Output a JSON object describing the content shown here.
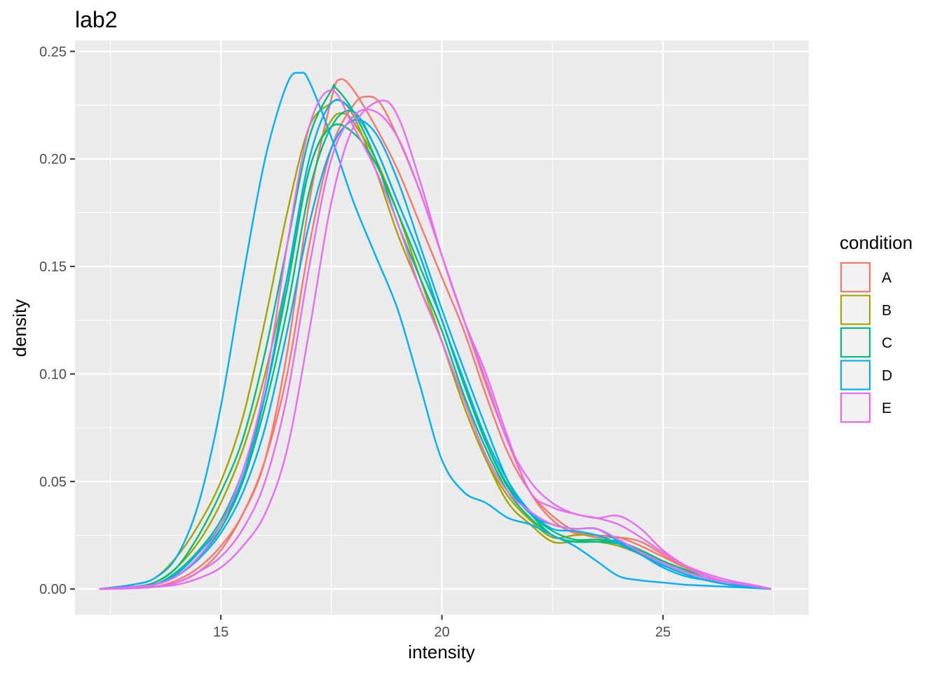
{
  "chart_data": {
    "type": "line",
    "title": "lab2",
    "xlabel": "intensity",
    "ylabel": "density",
    "xlim": [
      11.7,
      28.3
    ],
    "ylim": [
      -0.012,
      0.255
    ],
    "xticks": [
      15,
      20,
      25
    ],
    "yticks": [
      0.0,
      0.05,
      0.1,
      0.15,
      0.2,
      0.25
    ],
    "xtick_labels": [
      "15",
      "20",
      "25"
    ],
    "ytick_labels": [
      "0.00",
      "0.05",
      "0.10",
      "0.15",
      "0.20",
      "0.25"
    ],
    "grid": true,
    "legend": {
      "title": "condition",
      "position": "right",
      "entries": [
        {
          "label": "A",
          "color": "#F8766D"
        },
        {
          "label": "B",
          "color": "#A3A500"
        },
        {
          "label": "C",
          "color": "#00BF7D"
        },
        {
          "label": "D",
          "color": "#00B0F6"
        },
        {
          "label": "E",
          "color": "#E76BF3"
        }
      ]
    },
    "series": [
      {
        "condition": "A",
        "color": "#F8766D",
        "x": [
          12.25,
          13,
          13.5,
          14,
          14.5,
          15,
          15.5,
          16,
          16.5,
          17,
          17.5,
          17.7,
          18,
          18.5,
          19,
          19.5,
          20,
          20.5,
          21,
          21.5,
          22,
          22.5,
          23,
          23.5,
          24,
          24.5,
          25,
          25.5,
          26,
          26.5,
          27,
          27.45
        ],
        "y": [
          0,
          0.0005,
          0.001,
          0.004,
          0.01,
          0.02,
          0.035,
          0.06,
          0.11,
          0.18,
          0.228,
          0.237,
          0.232,
          0.215,
          0.195,
          0.17,
          0.145,
          0.12,
          0.09,
          0.063,
          0.045,
          0.034,
          0.027,
          0.024,
          0.024,
          0.022,
          0.016,
          0.01,
          0.006,
          0.003,
          0.0015,
          0
        ]
      },
      {
        "condition": "A",
        "color": "#F8766D",
        "x": [
          12.25,
          13,
          13.5,
          14,
          14.5,
          15,
          15.5,
          16,
          16.5,
          17,
          17.5,
          18,
          18.3,
          18.6,
          19,
          19.5,
          20,
          20.5,
          21,
          21.5,
          22,
          22.5,
          23,
          23.5,
          24,
          24.5,
          25,
          25.5,
          26,
          26.5,
          27,
          27.45
        ],
        "y": [
          0,
          0.0005,
          0.001,
          0.003,
          0.008,
          0.018,
          0.035,
          0.06,
          0.1,
          0.16,
          0.205,
          0.225,
          0.229,
          0.226,
          0.21,
          0.185,
          0.155,
          0.125,
          0.095,
          0.068,
          0.045,
          0.032,
          0.026,
          0.025,
          0.024,
          0.02,
          0.015,
          0.01,
          0.006,
          0.003,
          0.0015,
          0
        ]
      },
      {
        "condition": "B",
        "color": "#A3A500",
        "x": [
          12.25,
          13,
          13.5,
          14,
          14.5,
          15,
          15.5,
          16,
          16.5,
          17,
          17.5,
          17.7,
          18,
          18.5,
          19,
          19.5,
          20,
          20.5,
          21,
          21.5,
          22,
          22.5,
          23,
          23.5,
          24,
          24.5,
          25,
          25.5,
          26,
          26.5,
          27,
          27.45
        ],
        "y": [
          0,
          0.002,
          0.005,
          0.015,
          0.03,
          0.05,
          0.08,
          0.125,
          0.175,
          0.215,
          0.226,
          0.227,
          0.22,
          0.195,
          0.165,
          0.14,
          0.115,
          0.085,
          0.06,
          0.04,
          0.03,
          0.022,
          0.022,
          0.022,
          0.02,
          0.016,
          0.011,
          0.007,
          0.004,
          0.002,
          0.001,
          0
        ]
      },
      {
        "condition": "B",
        "color": "#A3A500",
        "x": [
          12.25,
          13,
          13.5,
          14,
          14.5,
          15,
          15.5,
          16,
          16.5,
          17,
          17.5,
          17.8,
          18,
          18.5,
          19,
          19.5,
          20,
          20.5,
          21,
          21.5,
          22,
          22.5,
          23,
          23.5,
          24,
          24.5,
          25,
          25.5,
          26,
          26.5,
          27,
          27.45
        ],
        "y": [
          0,
          0.001,
          0.003,
          0.01,
          0.022,
          0.04,
          0.065,
          0.1,
          0.145,
          0.195,
          0.218,
          0.221,
          0.217,
          0.2,
          0.175,
          0.145,
          0.115,
          0.085,
          0.06,
          0.043,
          0.032,
          0.024,
          0.025,
          0.025,
          0.021,
          0.016,
          0.011,
          0.007,
          0.004,
          0.002,
          0.001,
          0
        ]
      },
      {
        "condition": "C",
        "color": "#00BF7D",
        "x": [
          12.25,
          13,
          13.5,
          14,
          14.5,
          15,
          15.5,
          16,
          16.5,
          17,
          17.5,
          17.6,
          18,
          18.5,
          19,
          19.5,
          20,
          20.5,
          21,
          21.5,
          22,
          22.5,
          23,
          23.5,
          24,
          24.5,
          25,
          25.5,
          26,
          26.5,
          27,
          27.45
        ],
        "y": [
          0,
          0.001,
          0.003,
          0.01,
          0.025,
          0.045,
          0.07,
          0.11,
          0.16,
          0.21,
          0.232,
          0.233,
          0.222,
          0.2,
          0.17,
          0.145,
          0.12,
          0.09,
          0.065,
          0.045,
          0.033,
          0.025,
          0.022,
          0.022,
          0.021,
          0.017,
          0.012,
          0.008,
          0.005,
          0.003,
          0.001,
          0
        ]
      },
      {
        "condition": "C",
        "color": "#00BF7D",
        "x": [
          12.25,
          13,
          13.5,
          14,
          14.5,
          15,
          15.5,
          16,
          16.5,
          17,
          17.5,
          18,
          18.5,
          19,
          19.5,
          20,
          20.5,
          21,
          21.5,
          22,
          22.5,
          23,
          23.5,
          24,
          24.5,
          25,
          25.5,
          26,
          26.5,
          27,
          27.45
        ],
        "y": [
          0,
          0.001,
          0.002,
          0.008,
          0.018,
          0.032,
          0.055,
          0.09,
          0.14,
          0.195,
          0.215,
          0.212,
          0.198,
          0.175,
          0.15,
          0.125,
          0.095,
          0.068,
          0.048,
          0.035,
          0.025,
          0.022,
          0.022,
          0.022,
          0.018,
          0.013,
          0.009,
          0.005,
          0.003,
          0.001,
          0
        ]
      },
      {
        "condition": "C",
        "color": "#00BF7D",
        "x": [
          12.25,
          13,
          13.5,
          14,
          14.5,
          15,
          15.5,
          16,
          16.5,
          17,
          17.5,
          18,
          18.5,
          19,
          19.5,
          20,
          20.5,
          21,
          21.5,
          22,
          22.5,
          23,
          23.5,
          24,
          24.5,
          25,
          25.5,
          26,
          26.5,
          27,
          27.45
        ],
        "y": [
          0,
          0.0005,
          0.002,
          0.006,
          0.015,
          0.028,
          0.05,
          0.085,
          0.13,
          0.185,
          0.215,
          0.222,
          0.205,
          0.18,
          0.155,
          0.125,
          0.095,
          0.068,
          0.047,
          0.035,
          0.027,
          0.023,
          0.023,
          0.022,
          0.018,
          0.013,
          0.009,
          0.005,
          0.003,
          0.001,
          0
        ]
      },
      {
        "condition": "D",
        "color": "#00B0F6",
        "x": [
          12.25,
          13,
          13.5,
          14,
          14.5,
          15,
          15.5,
          16,
          16.5,
          16.8,
          17,
          17.5,
          18,
          18.5,
          19,
          19.5,
          20,
          20.5,
          21,
          21.5,
          22,
          22.5,
          23,
          23.5,
          24,
          24.5,
          25,
          25.5,
          26,
          26.5,
          27,
          27.45
        ],
        "y": [
          0,
          0.002,
          0.005,
          0.015,
          0.04,
          0.085,
          0.145,
          0.2,
          0.235,
          0.24,
          0.236,
          0.21,
          0.18,
          0.155,
          0.13,
          0.095,
          0.06,
          0.045,
          0.04,
          0.033,
          0.03,
          0.025,
          0.02,
          0.013,
          0.006,
          0.004,
          0.003,
          0.002,
          0.0015,
          0.001,
          0.0005,
          0
        ]
      },
      {
        "condition": "D",
        "color": "#00B0F6",
        "x": [
          12.25,
          13,
          13.5,
          14,
          14.5,
          15,
          15.5,
          16,
          16.5,
          17,
          17.5,
          18,
          18.5,
          19,
          19.5,
          20,
          20.5,
          21,
          21.5,
          22,
          22.5,
          23,
          23.5,
          24,
          24.5,
          25,
          25.5,
          26,
          26.5,
          27,
          27.45
        ],
        "y": [
          0,
          0.001,
          0.002,
          0.007,
          0.017,
          0.03,
          0.052,
          0.09,
          0.145,
          0.2,
          0.226,
          0.222,
          0.205,
          0.18,
          0.155,
          0.125,
          0.097,
          0.07,
          0.05,
          0.036,
          0.028,
          0.027,
          0.025,
          0.021,
          0.016,
          0.011,
          0.007,
          0.004,
          0.002,
          0.001,
          0
        ]
      },
      {
        "condition": "D",
        "color": "#00B0F6",
        "x": [
          12.25,
          13,
          13.5,
          14,
          14.5,
          15,
          15.5,
          16,
          16.5,
          17,
          17.5,
          18,
          18.5,
          19,
          19.5,
          20,
          20.5,
          21,
          21.5,
          22,
          22.5,
          23,
          23.5,
          24,
          24.5,
          25,
          25.5,
          26,
          26.5,
          27,
          27.45
        ],
        "y": [
          0,
          0.0005,
          0.002,
          0.006,
          0.014,
          0.026,
          0.045,
          0.075,
          0.12,
          0.17,
          0.205,
          0.218,
          0.212,
          0.19,
          0.16,
          0.13,
          0.102,
          0.075,
          0.05,
          0.035,
          0.03,
          0.028,
          0.028,
          0.022,
          0.016,
          0.01,
          0.006,
          0.004,
          0.002,
          0.001,
          0
        ]
      },
      {
        "condition": "E",
        "color": "#E76BF3",
        "x": [
          12.25,
          13,
          13.5,
          14,
          14.5,
          15,
          15.5,
          16,
          16.5,
          17,
          17.5,
          18,
          18.5,
          19,
          19.5,
          20,
          20.5,
          21,
          21.5,
          22,
          22.5,
          23,
          23.5,
          24,
          24.5,
          25,
          25.5,
          26,
          26.5,
          27,
          27.45
        ],
        "y": [
          0,
          0.001,
          0.002,
          0.006,
          0.015,
          0.03,
          0.055,
          0.095,
          0.16,
          0.215,
          0.232,
          0.215,
          0.195,
          0.17,
          0.14,
          0.115,
          0.088,
          0.062,
          0.045,
          0.036,
          0.03,
          0.028,
          0.028,
          0.023,
          0.017,
          0.012,
          0.008,
          0.005,
          0.003,
          0.0015,
          0
        ]
      },
      {
        "condition": "E",
        "color": "#E76BF3",
        "x": [
          12.25,
          13,
          13.5,
          14,
          14.5,
          15,
          15.5,
          16,
          16.5,
          17,
          17.5,
          18,
          18.5,
          19,
          19.5,
          20,
          20.5,
          21,
          21.5,
          22,
          22.5,
          23,
          23.5,
          24,
          24.5,
          25,
          25.5,
          26,
          26.5,
          27,
          27.45
        ],
        "y": [
          0,
          0.0005,
          0.001,
          0.003,
          0.008,
          0.015,
          0.028,
          0.05,
          0.09,
          0.15,
          0.2,
          0.22,
          0.222,
          0.21,
          0.185,
          0.155,
          0.125,
          0.097,
          0.068,
          0.05,
          0.04,
          0.035,
          0.033,
          0.03,
          0.024,
          0.017,
          0.011,
          0.007,
          0.004,
          0.002,
          0
        ]
      },
      {
        "condition": "E",
        "color": "#E76BF3",
        "x": [
          12.25,
          13,
          13.5,
          14,
          14.5,
          15,
          15.5,
          16,
          16.5,
          17,
          17.5,
          18,
          18.6,
          19,
          19.5,
          20,
          20.5,
          21,
          21.5,
          22,
          22.5,
          23,
          23.5,
          24,
          24.5,
          25,
          25.5,
          26,
          26.5,
          27,
          27.45
        ],
        "y": [
          0,
          0.0003,
          0.001,
          0.002,
          0.005,
          0.01,
          0.02,
          0.035,
          0.065,
          0.12,
          0.18,
          0.215,
          0.227,
          0.22,
          0.19,
          0.155,
          0.125,
          0.1,
          0.07,
          0.045,
          0.038,
          0.035,
          0.033,
          0.034,
          0.028,
          0.018,
          0.011,
          0.006,
          0.003,
          0.002,
          0
        ]
      }
    ]
  }
}
